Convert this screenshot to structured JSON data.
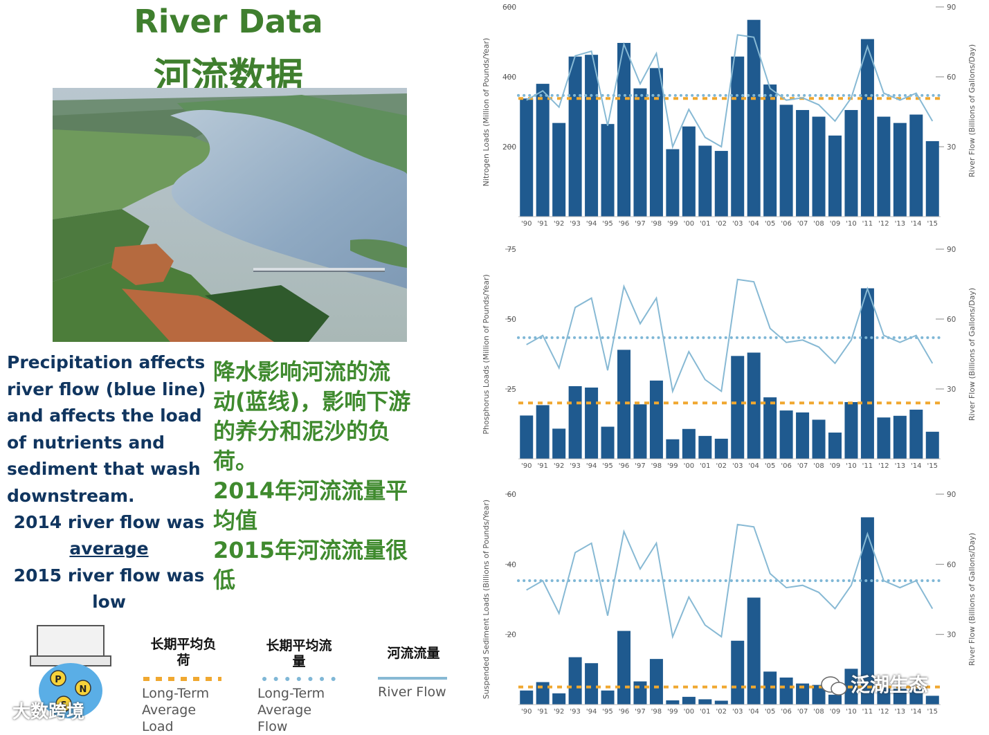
{
  "header": {
    "title_en": "River Data",
    "title_cn": "河流数据"
  },
  "text": {
    "en_lines": [
      "Precipitation affects",
      "river flow (blue line)",
      "and affects the load",
      "of nutrients and",
      "sediment that wash",
      "downstream."
    ],
    "line_2014": "2014 river flow was",
    "word_average": "average",
    "line_2015": "2015 river flow was",
    "word_low": "low",
    "cn_lines": [
      "降水影响河流的流",
      "动(蓝线)，影响下游",
      "的养分和泥沙的负",
      "荷。",
      "2014年河流流量平",
      "均值",
      "2015年河流流量很",
      "低"
    ]
  },
  "legend": {
    "load_cn_1": "长期平均负",
    "load_cn_2": "荷",
    "load_en_1": "Long-Term",
    "load_en_2": "Average Load",
    "flow_cn_1": "长期平均流",
    "flow_cn_2": "量",
    "flow_en_1": "Long-Term",
    "flow_en_2": "Average Flow",
    "river_cn": "河流流量",
    "river_en": "River Flow",
    "p_label": "P",
    "n_label": "N",
    "s_label": "S"
  },
  "watermarks": {
    "right": "泛湖生态",
    "left": "大数跨境"
  },
  "colors": {
    "bar": "#1f5a8f",
    "flow_line": "#87b9d4",
    "avg_flow_dots": "#7fb7d6",
    "avg_load": "#f0a830",
    "title_green": "#3f7f2e",
    "text_navy": "#10355f"
  },
  "chart_data": [
    {
      "type": "bar",
      "categories": [
        "'90",
        "'91",
        "'92",
        "'93",
        "'94",
        "'95",
        "'96",
        "'97",
        "'98",
        "'99",
        "'00",
        "'01",
        "'02",
        "'03",
        "'04",
        "'05",
        "'06",
        "'07",
        "'08",
        "'09",
        "'10",
        "'11",
        "'12",
        "'13",
        "'14",
        "'15"
      ],
      "ylabel": "Nitrogen Loads (Million of Pounds/Year)",
      "y2label": "River Flow (Billions of Gallons/Day)",
      "ylim": [
        0,
        600
      ],
      "y2lim": [
        0,
        90
      ],
      "yticks": [
        "200",
        "400",
        "600"
      ],
      "y2ticks": [
        "30",
        "60",
        "90"
      ],
      "series": [
        {
          "values": [
            338,
            380,
            268,
            458,
            463,
            265,
            497,
            367,
            425,
            193,
            258,
            203,
            188,
            458,
            563,
            378,
            320,
            305,
            286,
            232,
            305,
            508,
            286,
            268,
            292,
            216
          ]
        }
      ],
      "line_values": [
        50,
        54,
        47,
        69,
        71,
        39,
        74,
        57,
        70,
        30,
        46,
        34,
        30,
        78,
        77,
        55,
        50,
        51,
        48,
        41,
        51,
        73,
        53,
        50,
        53,
        41
      ],
      "avg_load": 338,
      "avg_flow": 52,
      "grid": false
    },
    {
      "type": "bar",
      "categories": [
        "'90",
        "'91",
        "'92",
        "'93",
        "'94",
        "'95",
        "'96",
        "'97",
        "'98",
        "'99",
        "'00",
        "'01",
        "'02",
        "'03",
        "'04",
        "'05",
        "'06",
        "'07",
        "'08",
        "'09",
        "'10",
        "'11",
        "'12",
        "'13",
        "'14",
        "'15"
      ],
      "ylabel": "Phosphorus Loads (Million of Pounds/Year)",
      "y2label": "River Flow (Billions of Gallons/Day)",
      "ylim": [
        0,
        75
      ],
      "y2lim": [
        0,
        90
      ],
      "yticks": [
        "25",
        "50",
        "75"
      ],
      "y2ticks": [
        "30",
        "60",
        "90"
      ],
      "series": [
        {
          "values": [
            15.5,
            19.2,
            10.8,
            26,
            25.5,
            11.5,
            39,
            19.5,
            28,
            7,
            10.7,
            8.2,
            7.2,
            36.8,
            38,
            22,
            17.3,
            16.6,
            14,
            9.4,
            20.3,
            61,
            14.8,
            15.4,
            17.6,
            9.7
          ]
        }
      ],
      "line_values": [
        49,
        53,
        39,
        65,
        69,
        38,
        74,
        58,
        69,
        29,
        46,
        34,
        29,
        77,
        76,
        56,
        50,
        51,
        48,
        41,
        51,
        73,
        53,
        50,
        53,
        41
      ],
      "avg_load": 20,
      "avg_flow": 52,
      "grid": false
    },
    {
      "type": "bar",
      "categories": [
        "'90",
        "'91",
        "'92",
        "'93",
        "'94",
        "'95",
        "'96",
        "'97",
        "'98",
        "'99",
        "'00",
        "'01",
        "'02",
        "'03",
        "'04",
        "'05",
        "'06",
        "'07",
        "'08",
        "'09",
        "'10",
        "'11",
        "'12",
        "'13",
        "'14",
        "'15"
      ],
      "ylabel": "Suspended Sediment Loads (Billions of Pounds/Year)",
      "y2label": "River Flow (Billions of Gallons/Day)",
      "ylim": [
        0,
        60
      ],
      "y2lim": [
        0,
        90
      ],
      "yticks": [
        "20",
        "40",
        "60"
      ],
      "y2ticks": [
        "30",
        "60",
        "90"
      ],
      "series": [
        {
          "values": [
            4,
            6.4,
            3.2,
            13.5,
            11.8,
            4,
            21,
            6.6,
            13,
            1.2,
            2.2,
            1.5,
            1.1,
            18.2,
            30.5,
            9.4,
            7.7,
            6,
            5.6,
            2.8,
            10.2,
            53.4,
            4.8,
            4.5,
            4.5,
            2.5
          ]
        }
      ],
      "line_values": [
        49,
        53,
        39,
        65,
        69,
        38,
        74,
        58,
        69,
        29,
        46,
        34,
        29,
        77,
        76,
        56,
        50,
        51,
        48,
        41,
        51,
        73,
        53,
        50,
        53,
        41
      ],
      "avg_load": 5,
      "avg_flow": 53,
      "grid": false
    }
  ]
}
